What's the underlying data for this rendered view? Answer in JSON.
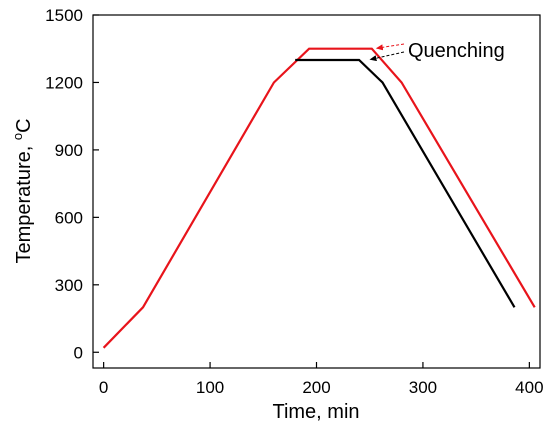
{
  "chart_data": {
    "type": "line",
    "xlabel": "Time, min",
    "ylabel_main": "Temperature, ",
    "ylabel_sup": "o",
    "ylabel_unit": "C",
    "xlim": [
      -10,
      410
    ],
    "ylim": [
      -70,
      1500
    ],
    "x_ticks": [
      0,
      100,
      200,
      300,
      400
    ],
    "y_ticks": [
      0,
      300,
      600,
      900,
      1200,
      1500
    ],
    "grid": false,
    "series": [
      {
        "color": "#e8141b",
        "x": [
          0,
          37,
          160,
          193,
          252,
          280,
          405
        ],
        "y": [
          20,
          200,
          1200,
          1350,
          1350,
          1200,
          200
        ]
      },
      {
        "color": "#000000",
        "x": [
          180,
          240,
          262,
          386
        ],
        "y": [
          1300,
          1300,
          1200,
          200
        ]
      }
    ],
    "annotation": {
      "text": "Quenching",
      "arrows": [
        {
          "color": "#e8141b",
          "tip": [
            252,
            1350
          ]
        },
        {
          "color": "#000000",
          "tip": [
            246,
            1300
          ]
        }
      ]
    }
  }
}
